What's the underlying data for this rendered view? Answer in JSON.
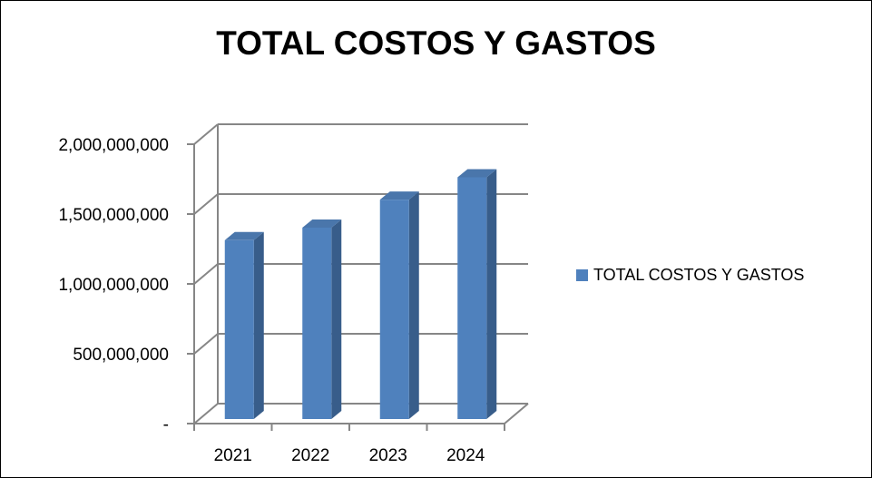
{
  "chart_data": {
    "type": "bar",
    "title": "TOTAL COSTOS Y GASTOS",
    "categories": [
      "2021",
      "2022",
      "2023",
      "2024"
    ],
    "series": [
      {
        "name": "TOTAL COSTOS Y GASTOS",
        "values": [
          1300000000,
          1390000000,
          1590000000,
          1750000000
        ]
      }
    ],
    "ylim": [
      0,
      2000000000
    ],
    "yticks": [
      0,
      500000000,
      1000000000,
      1500000000,
      2000000000
    ],
    "ytick_labels": [
      "-",
      "500,000,000",
      "1,000,000,000",
      "1,500,000,000",
      "2,000,000,000"
    ],
    "grid": true,
    "legend_position": "right",
    "bar_color": "#4f81bd"
  }
}
